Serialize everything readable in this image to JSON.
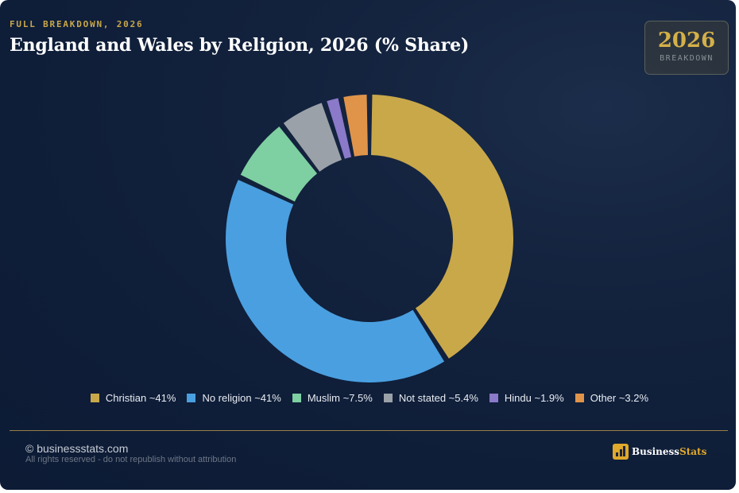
{
  "header": {
    "eyebrow": "FULL BREAKDOWN, 2026",
    "title": "England and Wales by Religion, 2026 (% Share)"
  },
  "badge": {
    "year": "2026",
    "label": "BREAKDOWN"
  },
  "chart_data": {
    "type": "pie",
    "variant": "donut",
    "legend_position": "bottom",
    "series": [
      {
        "name": "Christian ~41%",
        "value": 41,
        "color": "#c9a84a"
      },
      {
        "name": "No religion ~41%",
        "value": 41,
        "color": "#4a9fe0"
      },
      {
        "name": "Muslim ~7.5%",
        "value": 7.5,
        "color": "#7ecfa2"
      },
      {
        "name": "Not stated ~5.4%",
        "value": 5.4,
        "color": "#9aa1a8"
      },
      {
        "name": "Hindu ~1.9%",
        "value": 1.9,
        "color": "#8b79c9"
      },
      {
        "name": "Other ~3.2%",
        "value": 3.2,
        "color": "#e0944a"
      }
    ]
  },
  "footer": {
    "site": "© businessstats.com",
    "rights": "All rights reserved - do not republish without attribution",
    "logo_prefix": "Business",
    "logo_suffix": "Stats"
  }
}
